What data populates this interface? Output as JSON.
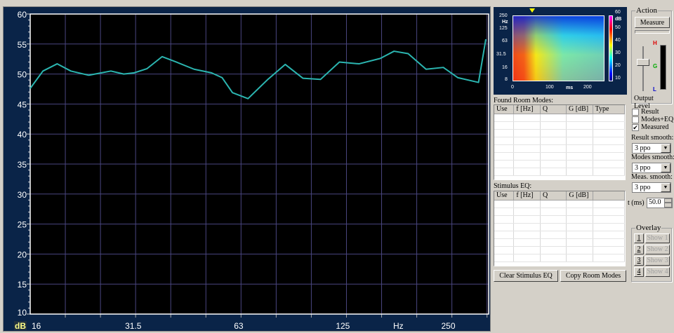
{
  "chart_data": {
    "type": "line",
    "xlabel": "Hz",
    "ylabel": "dB",
    "x_scale": "log",
    "xlim": [
      16,
      326
    ],
    "ylim": [
      10,
      60
    ],
    "xticks": [
      "16",
      "31.5",
      "63",
      "125",
      "250"
    ],
    "yticks": [
      "10",
      "15",
      "20",
      "25",
      "30",
      "35",
      "40",
      "45",
      "50",
      "55",
      "60"
    ],
    "grid": true,
    "line_color": "#2bb5b0",
    "series": [
      {
        "x": [
          16,
          17.4,
          19.1,
          20.9,
          23.5,
          27.2,
          29.6,
          31.7,
          34.5,
          38.1,
          41.8,
          47,
          52.7,
          56.5,
          60.5,
          67,
          76.3,
          85.6,
          96.1,
          107.9,
          122.2,
          139,
          159.8,
          175,
          192,
          216,
          242,
          266,
          305,
          320
        ],
        "y": [
          47.6,
          50.5,
          51.7,
          50.5,
          49.8,
          50.5,
          50.0,
          50.2,
          50.9,
          52.9,
          52.0,
          50.8,
          50.2,
          49.4,
          46.9,
          45.9,
          49.1,
          51.6,
          49.3,
          49.1,
          52.0,
          51.7,
          52.6,
          53.8,
          53.4,
          50.8,
          51.1,
          49.4,
          48.6,
          55.8
        ]
      }
    ]
  },
  "spectrogram": {
    "y_unit": "Hz",
    "y_ticks": [
      "250",
      "125",
      "63",
      "31.5",
      "16",
      "8"
    ],
    "x_unit": "ms",
    "x_ticks": [
      "0",
      "100",
      "200"
    ],
    "scale_unit": "dB",
    "scale_ticks": [
      "60",
      "50",
      "40",
      "30",
      "20",
      "10"
    ]
  },
  "action": {
    "title": "Action",
    "measure": "Measure",
    "output_level": "Output Level",
    "meter_labels": {
      "high": "H",
      "good": "G",
      "low": "L"
    }
  },
  "room_modes": {
    "title": "Found Room Modes:",
    "columns": [
      "Use",
      "f [Hz]",
      "Q",
      "G [dB]",
      "Type"
    ]
  },
  "stimulus_eq": {
    "title": "Stimulus EQ:",
    "columns": [
      "Use",
      "f [Hz]",
      "Q",
      "G [dB]",
      ""
    ]
  },
  "checks": [
    {
      "label": "Result",
      "checked": false
    },
    {
      "label": "Modes+EQ",
      "checked": false
    },
    {
      "label": "Measured",
      "checked": true
    }
  ],
  "smoothing": [
    {
      "label": "Result smooth:",
      "value": "3 ppo"
    },
    {
      "label": "Modes smooth:",
      "value": "3 ppo"
    },
    {
      "label": "Meas. smooth:",
      "value": "3 ppo"
    }
  ],
  "time": {
    "label": "t (ms)",
    "value": "50.0"
  },
  "buttons": {
    "clear_eq": "Clear Stimulus EQ",
    "copy_modes": "Copy Room Modes"
  },
  "overlay": {
    "title": "Overlay",
    "items": [
      {
        "num": "1",
        "show": "Show 1"
      },
      {
        "num": "2",
        "show": "Show 2"
      },
      {
        "num": "3",
        "show": "Show 3"
      },
      {
        "num": "4",
        "show": "Show 4"
      }
    ]
  }
}
